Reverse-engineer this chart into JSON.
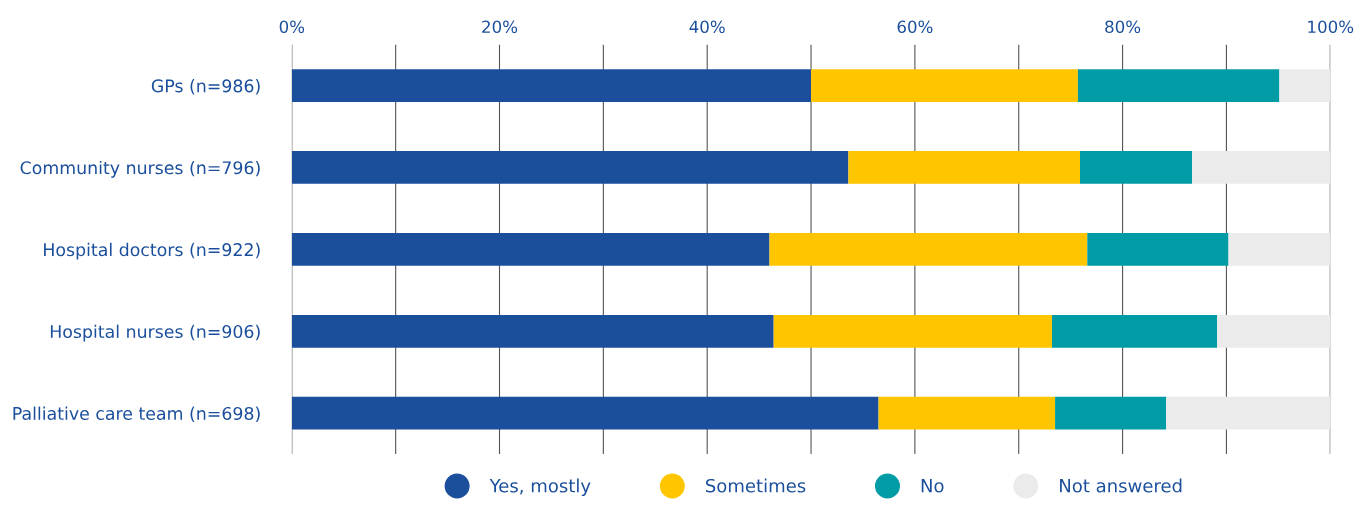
{
  "chart_data": {
    "type": "bar",
    "orientation": "horizontal",
    "stacked": true,
    "categories": [
      "GPs (n=986)",
      "Community nurses (n=796)",
      "Hospital doctors (n=922)",
      "Hospital nurses (n=906)",
      "Palliative care team (n=698)"
    ],
    "series": [
      {
        "name": "Yes, mostly",
        "color": "#1b4f9c",
        "values": [
          50,
          53.6,
          46,
          46.4,
          56.5
        ]
      },
      {
        "name": "Sometimes",
        "color": "#ffc600",
        "values": [
          25.7,
          22.3,
          30.6,
          26.8,
          17
        ]
      },
      {
        "name": "No",
        "color": "#009ca6",
        "values": [
          19.4,
          10.8,
          13.6,
          15.9,
          10.7
        ]
      },
      {
        "name": "Not answered",
        "color": "#ebebeb",
        "values": [
          4.9,
          13.3,
          9.8,
          10.9,
          15.8
        ]
      }
    ],
    "xlim": [
      0,
      100
    ],
    "xticks": [
      {
        "value": 0,
        "label": "0%"
      },
      {
        "value": 10,
        "label": null
      },
      {
        "value": 20,
        "label": "20%"
      },
      {
        "value": 30,
        "label": null
      },
      {
        "value": 40,
        "label": "40%"
      },
      {
        "value": 50,
        "label": null
      },
      {
        "value": 60,
        "label": "60%"
      },
      {
        "value": 70,
        "label": null
      },
      {
        "value": 80,
        "label": "80%"
      },
      {
        "value": 90,
        "label": null
      },
      {
        "value": 100,
        "label": "100%"
      }
    ],
    "grid": "x",
    "legend": "bottom"
  }
}
